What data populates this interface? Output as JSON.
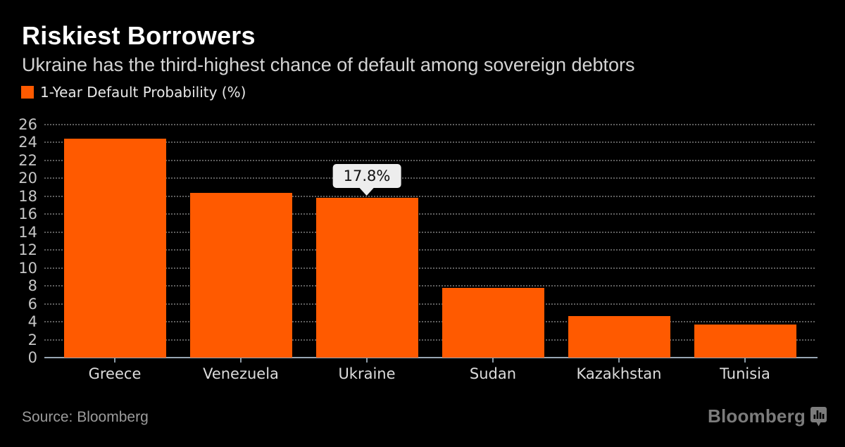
{
  "header": {
    "title": "Riskiest Borrowers",
    "subtitle": "Ukraine has the third-highest chance of default among sovereign debtors"
  },
  "legend": {
    "label": "1-Year Default Probability (%)",
    "swatch_color": "#ff5a00"
  },
  "chart_data": {
    "type": "bar",
    "title": "Riskiest Borrowers",
    "subtitle": "Ukraine has the third-highest chance of default among sovereign debtors",
    "series_label": "1-Year Default Probability (%)",
    "categories": [
      "Greece",
      "Venezuela",
      "Ukraine",
      "Sudan",
      "Kazakhstan",
      "Tunisia"
    ],
    "values": [
      24.4,
      18.4,
      17.8,
      7.8,
      4.6,
      3.7
    ],
    "xlabel": "",
    "ylabel": "",
    "ylim": [
      0,
      26
    ],
    "y_ticks": [
      0,
      2,
      4,
      6,
      8,
      10,
      12,
      14,
      16,
      18,
      20,
      22,
      24,
      26
    ],
    "grid": "horizontal-dotted",
    "legend_position": "top-left",
    "bar_color": "#ff5a00",
    "annotation": {
      "category": "Ukraine",
      "text": "17.8%"
    }
  },
  "colors": {
    "background": "#000000",
    "accent_orange": "#ff5a00",
    "axis_line": "#97a5b2",
    "gridline": "#5e5e5e",
    "tooltip_bg": "#ededed"
  },
  "footer": {
    "source": "Source: Bloomberg",
    "brand": "Bloomberg",
    "brand_icon": "bar-chart-bubble-icon"
  }
}
